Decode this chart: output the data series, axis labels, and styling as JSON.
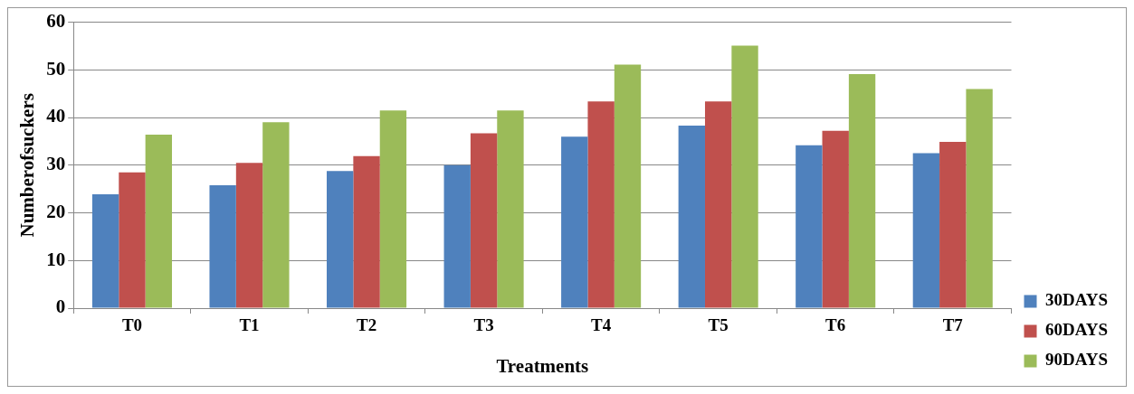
{
  "chart_data": {
    "type": "bar",
    "xlabel": "Treatments",
    "ylabel": "Numberofsuckers",
    "categories": [
      "T0",
      "T1",
      "T2",
      "T3",
      "T4",
      "T5",
      "T6",
      "T7"
    ],
    "series": [
      {
        "name": "30DAYS",
        "color": "#4f81bd",
        "values": [
          23.9,
          25.8,
          28.8,
          30.0,
          36.0,
          38.3,
          34.2,
          32.5
        ]
      },
      {
        "name": "60DAYS",
        "color": "#c0504d",
        "values": [
          28.5,
          30.5,
          31.9,
          36.7,
          43.4,
          43.4,
          37.2,
          34.9
        ]
      },
      {
        "name": "90DAYS",
        "color": "#9bbb59",
        "values": [
          36.4,
          39.0,
          41.5,
          41.5,
          51.1,
          55.1,
          49.1,
          46.0
        ]
      }
    ],
    "ylim": [
      0,
      60
    ],
    "yticks": [
      0,
      10,
      20,
      30,
      40,
      50,
      60
    ],
    "grid": "y",
    "legend": "right"
  }
}
